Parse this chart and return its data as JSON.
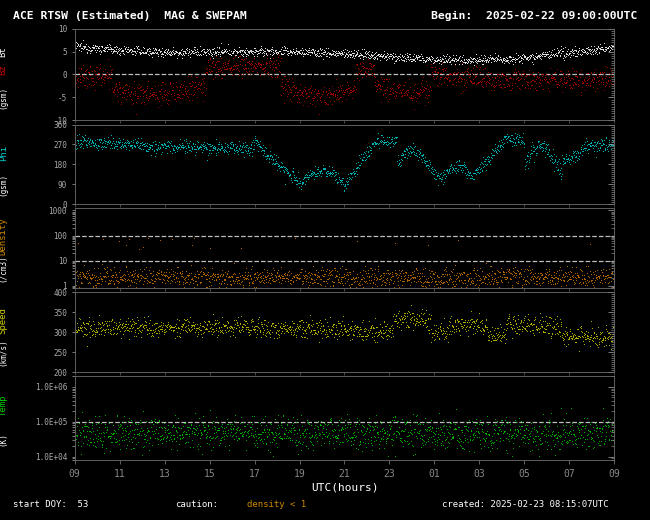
{
  "title_left": "ACE RTSW (Estimated)  MAG & SWEPAM",
  "title_right": "Begin:  2025-02-22 09:00:00UTC",
  "background_color": "#000000",
  "text_color": "#ffffff",
  "xlabel": "UTC(hours)",
  "footer_left": "start DOY:  53",
  "footer_caution": "caution:",
  "footer_density": "density < 1",
  "footer_right": "created: 2025-02-23 08:15:07UTC",
  "x_tick_positions": [
    9,
    11,
    13,
    15,
    17,
    19,
    21,
    23,
    25,
    27,
    29,
    31,
    33
  ],
  "x_tick_labels": [
    "09",
    "11",
    "13",
    "15",
    "17",
    "19",
    "21",
    "23",
    "01",
    "03",
    "05",
    "07",
    "09"
  ],
  "x_min": 9,
  "x_max": 33,
  "panels": [
    {
      "ylabel_top": "Bt",
      "ylabel_bot": "Bz",
      "ylabel_mid": "(gsm)",
      "ylabel_color_top": "#ffffff",
      "ylabel_color_bot": "#cc0000",
      "ylabel_color_mid": "#ffffff",
      "ylim": [
        -10,
        10
      ],
      "yticks": [
        -10,
        -5,
        0,
        5,
        10
      ],
      "dashed_y": 0,
      "series_colors": [
        "#ffffff",
        "#bb0000"
      ]
    },
    {
      "ylabel_top": "Phi",
      "ylabel_mid": "(gsm)",
      "ylabel_color_top": "#00cccc",
      "ylabel_color_mid": "#ffffff",
      "ylim": [
        0,
        360
      ],
      "yticks": [
        0,
        90,
        180,
        270,
        360
      ],
      "dashed_y": null,
      "series_colors": [
        "#00cccc"
      ]
    },
    {
      "ylabel_top": "Density",
      "ylabel_mid": "(/cm3)",
      "ylabel_color_top": "#cc8800",
      "ylabel_color_mid": "#ffffff",
      "ylim_log": true,
      "ymin": 0.8,
      "ymax": 1200,
      "yticks_log": [
        1,
        10,
        100,
        1000
      ],
      "ytick_labels_log": [
        "1",
        "10",
        "100",
        "1000"
      ],
      "dashed_lines": [
        10,
        100
      ],
      "series_colors": [
        "#cc7700"
      ]
    },
    {
      "ylabel_top": "Speed",
      "ylabel_mid": "(km/s)",
      "ylabel_color_top": "#cccc00",
      "ylabel_color_mid": "#ffffff",
      "ylim": [
        200,
        400
      ],
      "yticks": [
        200,
        250,
        300,
        350,
        400
      ],
      "dashed_y": null,
      "series_colors": [
        "#cccc00"
      ]
    },
    {
      "ylabel_top": "Temp",
      "ylabel_mid": "(K)",
      "ylabel_color_top": "#00cc00",
      "ylabel_color_mid": "#ffffff",
      "ylim_log": true,
      "ymin": 8000,
      "ymax": 2000000,
      "yticks_log": [
        10000,
        100000,
        1000000
      ],
      "ytick_labels_log": [
        "1.0E+04",
        "1.0E+05",
        "1.0E+06"
      ],
      "dashed_lines": [
        100000
      ],
      "series_colors": [
        "#00cc00"
      ]
    }
  ]
}
